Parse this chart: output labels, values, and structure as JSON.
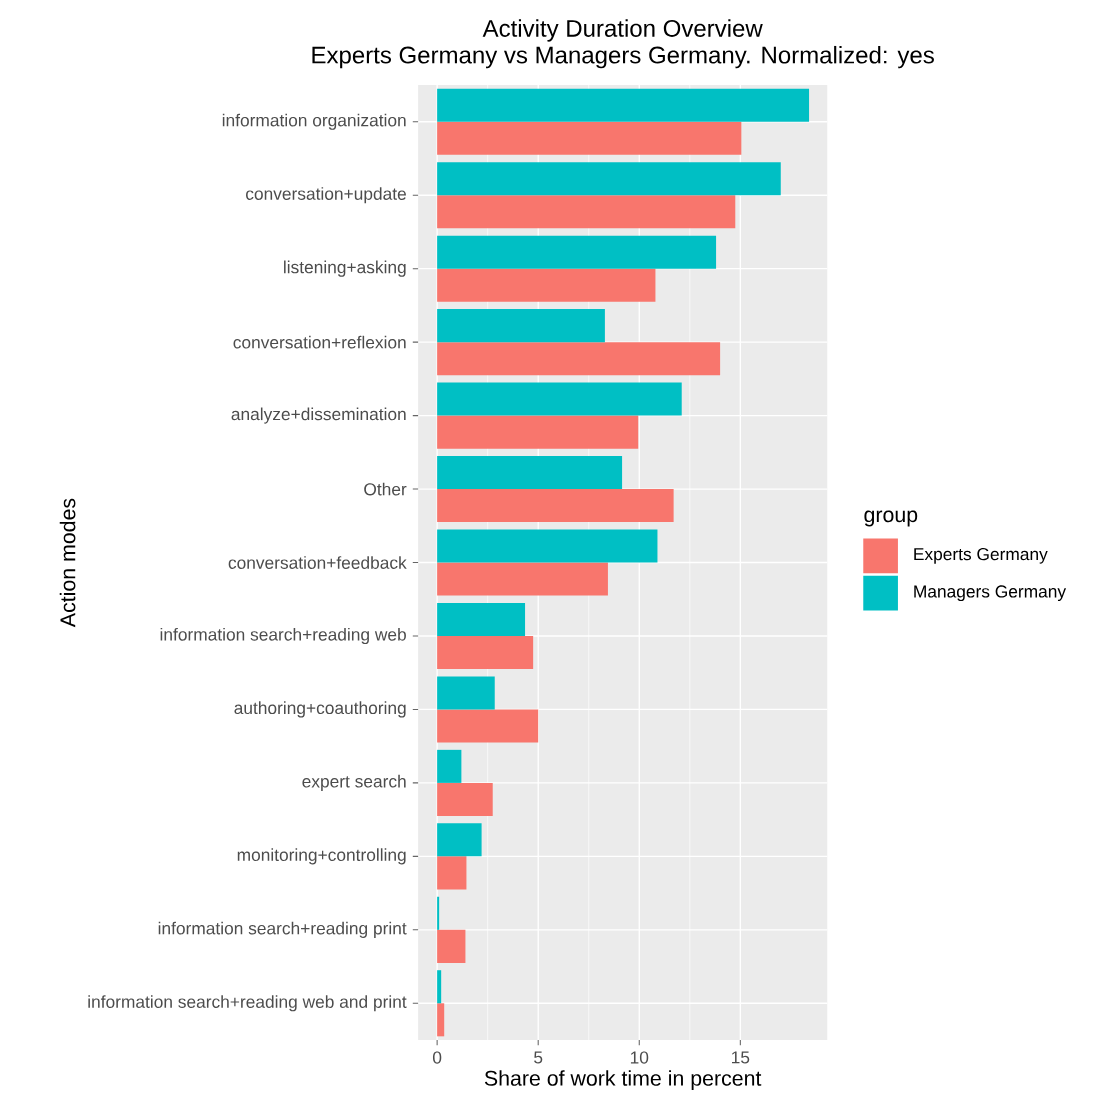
{
  "chart_data": {
    "type": "bar",
    "orientation": "horizontal",
    "title": "Activity Duration Overview",
    "subtitle": "Experts Germany vs Managers Germany. Normalized: yes",
    "xlabel": "Share of work time in percent",
    "ylabel": "Action modes",
    "legend_title": "group",
    "legend": "right",
    "grid": true,
    "categories": [
      "information organization",
      "conversation+update",
      "listening+asking",
      "conversation+reflexion",
      "analyze+dissemination",
      "Other",
      "conversation+feedback",
      "information search+reading web",
      "authoring+coauthoring",
      "expert search",
      "monitoring+controlling",
      "information search+reading print",
      "information search+reading web and print"
    ],
    "series": [
      {
        "name": "Experts Germany",
        "color": "#f8766d",
        "values": [
          15.05,
          14.75,
          10.8,
          14.0,
          9.95,
          11.7,
          8.45,
          4.75,
          5.0,
          2.75,
          1.45,
          1.4,
          0.35
        ]
      },
      {
        "name": "Managers Germany",
        "color": "#00bfc4",
        "values": [
          18.4,
          17.0,
          13.8,
          8.3,
          12.1,
          9.15,
          10.9,
          4.35,
          2.85,
          1.2,
          2.2,
          0.1,
          0.2
        ]
      }
    ],
    "xlim": [
      -0.94,
      19.3
    ],
    "xticks": [
      0,
      5,
      10,
      15
    ]
  }
}
